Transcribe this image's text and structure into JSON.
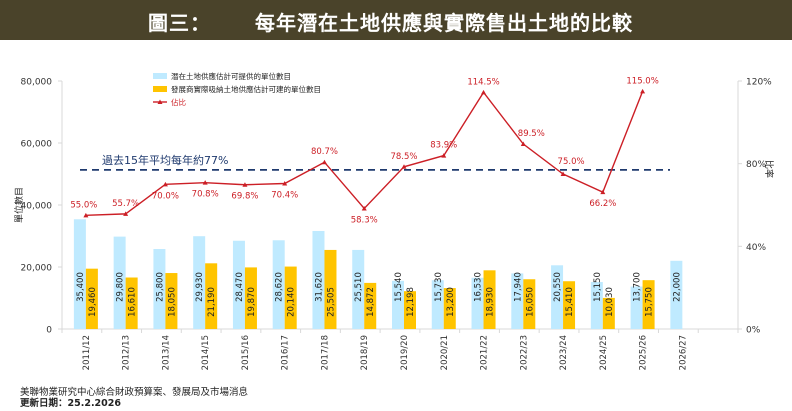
{
  "header": {
    "prefix": "圖三：",
    "title": "每年潛在土地供應與實際售出土地的比較"
  },
  "chart_data": {
    "type": "bar",
    "title": "每年潛在土地供應與實際售出土地的比較",
    "categories": [
      "2011/12",
      "2012/13",
      "2013/14",
      "2014/15",
      "2015/16",
      "2016/17",
      "2017/18",
      "2018/19",
      "2019/20",
      "2020/21",
      "2021/22",
      "2022/23",
      "2023/24",
      "2024/25",
      "2025/26",
      "2026/27"
    ],
    "series": [
      {
        "name": "潛在土地供應估計可提供的單位數目",
        "type": "bar",
        "axis": "left",
        "color": "#bfeaff",
        "values": [
          35400,
          29800,
          25800,
          29930,
          28470,
          28620,
          31620,
          25510,
          15540,
          15730,
          16530,
          17940,
          20550,
          15150,
          13700,
          22000
        ],
        "labels": [
          "35,400",
          "29,800",
          "25,800",
          "29,930",
          "28,470",
          "28,620",
          "31,620",
          "25,510",
          "15,540",
          "15,730",
          "16,530",
          "17,940",
          "20,550",
          "15,150",
          "13,700",
          "22,000"
        ]
      },
      {
        "name": "發展商實際吸納土地供應估計可建的單位數目",
        "type": "bar",
        "axis": "left",
        "color": "#ffc400",
        "values": [
          19460,
          16610,
          18050,
          21190,
          19870,
          20140,
          25505,
          14872,
          12198,
          13200,
          18930,
          16050,
          15410,
          10030,
          15750,
          null
        ],
        "labels": [
          "19,460",
          "16,610",
          "18,050",
          "21,190",
          "19,870",
          "20,140",
          "25,505",
          "14,872",
          "12,198",
          "13,200",
          "18,930",
          "16,050",
          "15,410",
          "10,030",
          "15,750",
          ""
        ]
      },
      {
        "name": "佔比",
        "type": "line",
        "axis": "right",
        "color": "#cc1f26",
        "values": [
          55.0,
          55.7,
          70.0,
          70.8,
          69.8,
          70.4,
          80.7,
          58.3,
          78.5,
          83.9,
          114.5,
          89.5,
          75.0,
          66.2,
          115.0,
          null
        ],
        "labels": [
          "55.0%",
          "55.7%",
          "70.0%",
          "70.8%",
          "69.8%",
          "70.4%",
          "80.7%",
          "58.3%",
          "78.5%",
          "83.9%",
          "114.5%",
          "89.5%",
          "75.0%",
          "66.2%",
          "115.0%",
          ""
        ]
      }
    ],
    "reference_line": {
      "value": 77,
      "axis": "right",
      "label": "過去15年平均每年約77%",
      "color": "#1f3a6e",
      "style": "dashed"
    },
    "ylabel": "單位數目",
    "y2label": "比率",
    "ylim": [
      0,
      80000
    ],
    "yticks": [
      "0",
      "20,000",
      "40,000",
      "60,000",
      "80,000"
    ],
    "ytick_values": [
      0,
      20000,
      40000,
      60000,
      80000
    ],
    "y2lim": [
      0,
      120
    ],
    "y2ticks": [
      "0%",
      "40%",
      "80%",
      "120%"
    ],
    "y2tick_values": [
      0,
      40,
      80,
      120
    ],
    "legend_position": "top-left",
    "grid": false
  },
  "footer": {
    "source": "美聯物業研究中心綜合財政預算案、發展局及市場消息",
    "updated": "更新日期：25.2.2026"
  }
}
